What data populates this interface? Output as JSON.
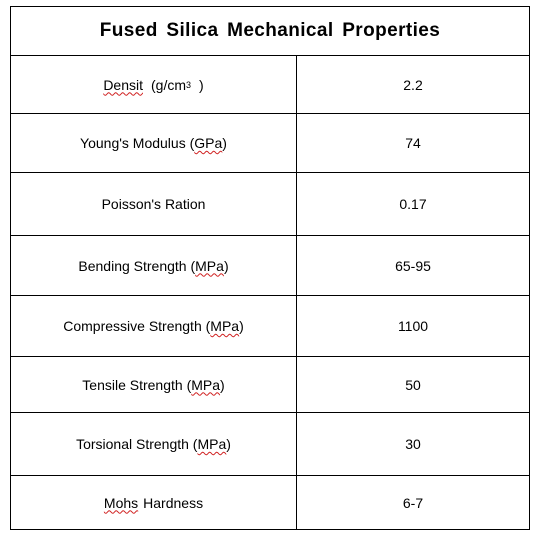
{
  "table": {
    "title": "Fused Silica Mechanical Properties",
    "rows": [
      {
        "name_pre": "",
        "name_sq": "Densit",
        "name_post": "(g/cm",
        "sup": "3",
        "name_tail": ")",
        "value": "2.2"
      },
      {
        "name_pre": "Young's Modulus (",
        "name_sq": "GPa",
        "name_post": ")",
        "sup": "",
        "name_tail": "",
        "value": "74"
      },
      {
        "name_pre": "Poisson's Ration",
        "name_sq": "",
        "name_post": "",
        "sup": "",
        "name_tail": "",
        "value": "0.17"
      },
      {
        "name_pre": "Bending Strength (",
        "name_sq": "MPa",
        "name_post": ")",
        "sup": "",
        "name_tail": "",
        "value": "65-95"
      },
      {
        "name_pre": "Compressive Strength (",
        "name_sq": "MPa",
        "name_post": ")",
        "sup": "",
        "name_tail": "",
        "value": "1100"
      },
      {
        "name_pre": "Tensile Strength (",
        "name_sq": "MPa",
        "name_post": ")",
        "sup": "",
        "name_tail": "",
        "value": "50"
      },
      {
        "name_pre": "Torsional Strength (",
        "name_sq": "MPa",
        "name_post": ")",
        "sup": "",
        "name_tail": "",
        "value": "30"
      },
      {
        "name_pre": "",
        "name_sq": "Mohs",
        "name_post": "Hardness",
        "sup": "",
        "name_tail": "",
        "value": "6-7"
      }
    ]
  }
}
